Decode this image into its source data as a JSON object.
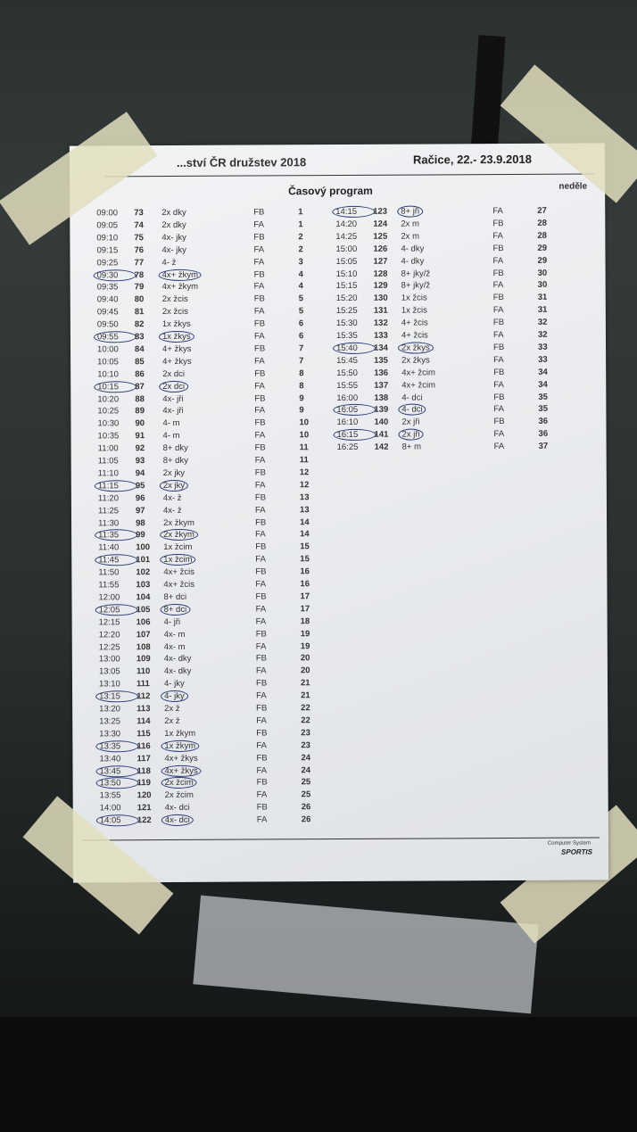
{
  "header": {
    "competition": "...ství ČR družstev 2018",
    "venue_date": "Račice, 22.- 23.9.2018"
  },
  "title": "Časový program",
  "day": "neděle",
  "footer": {
    "line1": "Computer System",
    "brand": "SPORTIS"
  },
  "colors": {
    "paper": "#eceef1",
    "ink": "#333333",
    "pen_circle": "#2b3a7a",
    "tape": "#e2debe"
  },
  "columns": [
    [
      {
        "time": "09:00",
        "no": "73",
        "event": "2x dky",
        "course": "FB",
        "lane": "1"
      },
      {
        "time": "09:05",
        "no": "74",
        "event": "2x dky",
        "course": "FA",
        "lane": "1"
      },
      {
        "time": "09:10",
        "no": "75",
        "event": "4x- jky",
        "course": "FB",
        "lane": "2"
      },
      {
        "time": "09:15",
        "no": "76",
        "event": "4x- jky",
        "course": "FA",
        "lane": "2"
      },
      {
        "time": "09:25",
        "no": "77",
        "event": "4- ž",
        "course": "FA",
        "lane": "3"
      },
      {
        "time": "09:30",
        "no": "78",
        "event": "4x+ žkym",
        "course": "FB",
        "lane": "4",
        "circled": true
      },
      {
        "time": "09:35",
        "no": "79",
        "event": "4x+ žkym",
        "course": "FA",
        "lane": "4"
      },
      {
        "time": "09:40",
        "no": "80",
        "event": "2x žcis",
        "course": "FB",
        "lane": "5"
      },
      {
        "time": "09:45",
        "no": "81",
        "event": "2x žcis",
        "course": "FA",
        "lane": "5"
      },
      {
        "time": "09:50",
        "no": "82",
        "event": "1x žkys",
        "course": "FB",
        "lane": "6"
      },
      {
        "time": "09:55",
        "no": "83",
        "event": "1x žkys",
        "course": "FA",
        "lane": "6",
        "circled": true
      },
      {
        "time": "10:00",
        "no": "84",
        "event": "4+ žkys",
        "course": "FB",
        "lane": "7"
      },
      {
        "time": "10:05",
        "no": "85",
        "event": "4+ žkys",
        "course": "FA",
        "lane": "7"
      },
      {
        "time": "10:10",
        "no": "86",
        "event": "2x dci",
        "course": "FB",
        "lane": "8"
      },
      {
        "time": "10:15",
        "no": "87",
        "event": "2x dci",
        "course": "FA",
        "lane": "8",
        "circled": true
      },
      {
        "time": "10:20",
        "no": "88",
        "event": "4x- jři",
        "course": "FB",
        "lane": "9"
      },
      {
        "time": "10:25",
        "no": "89",
        "event": "4x- jři",
        "course": "FA",
        "lane": "9"
      },
      {
        "time": "10:30",
        "no": "90",
        "event": "4- m",
        "course": "FB",
        "lane": "10"
      },
      {
        "time": "10:35",
        "no": "91",
        "event": "4- m",
        "course": "FA",
        "lane": "10"
      },
      {
        "time": "11:00",
        "no": "92",
        "event": "8+ dky",
        "course": "FB",
        "lane": "11"
      },
      {
        "time": "11:05",
        "no": "93",
        "event": "8+ dky",
        "course": "FA",
        "lane": "11"
      },
      {
        "time": "11:10",
        "no": "94",
        "event": "2x jky",
        "course": "FB",
        "lane": "12"
      },
      {
        "time": "11:15",
        "no": "95",
        "event": "2x jky",
        "course": "FA",
        "lane": "12",
        "circled": true
      },
      {
        "time": "11:20",
        "no": "96",
        "event": "4x- ž",
        "course": "FB",
        "lane": "13"
      },
      {
        "time": "11:25",
        "no": "97",
        "event": "4x- ž",
        "course": "FA",
        "lane": "13"
      },
      {
        "time": "11:30",
        "no": "98",
        "event": "2x žkym",
        "course": "FB",
        "lane": "14"
      },
      {
        "time": "11:35",
        "no": "99",
        "event": "2x žkym",
        "course": "FA",
        "lane": "14",
        "circled": true
      },
      {
        "time": "11:40",
        "no": "100",
        "event": "1x žcim",
        "course": "FB",
        "lane": "15"
      },
      {
        "time": "11:45",
        "no": "101",
        "event": "1x žcim",
        "course": "FA",
        "lane": "15",
        "circled": true
      },
      {
        "time": "11:50",
        "no": "102",
        "event": "4x+ žcis",
        "course": "FB",
        "lane": "16"
      },
      {
        "time": "11:55",
        "no": "103",
        "event": "4x+ žcis",
        "course": "FA",
        "lane": "16"
      },
      {
        "time": "12:00",
        "no": "104",
        "event": "8+ dci",
        "course": "FB",
        "lane": "17"
      },
      {
        "time": "12:05",
        "no": "105",
        "event": "8+ dci",
        "course": "FA",
        "lane": "17",
        "circled": true
      },
      {
        "time": "12:15",
        "no": "106",
        "event": "4- jři",
        "course": "FA",
        "lane": "18"
      },
      {
        "time": "12:20",
        "no": "107",
        "event": "4x- m",
        "course": "FB",
        "lane": "19"
      },
      {
        "time": "12:25",
        "no": "108",
        "event": "4x- m",
        "course": "FA",
        "lane": "19"
      },
      {
        "time": "13:00",
        "no": "109",
        "event": "4x- dky",
        "course": "FB",
        "lane": "20"
      },
      {
        "time": "13:05",
        "no": "110",
        "event": "4x- dky",
        "course": "FA",
        "lane": "20"
      },
      {
        "time": "13:10",
        "no": "111",
        "event": "4- jky",
        "course": "FB",
        "lane": "21"
      },
      {
        "time": "13:15",
        "no": "112",
        "event": "4- jky",
        "course": "FA",
        "lane": "21",
        "circled": true
      },
      {
        "time": "13:20",
        "no": "113",
        "event": "2x ž",
        "course": "FB",
        "lane": "22"
      },
      {
        "time": "13:25",
        "no": "114",
        "event": "2x ž",
        "course": "FA",
        "lane": "22"
      },
      {
        "time": "13:30",
        "no": "115",
        "event": "1x žkym",
        "course": "FB",
        "lane": "23"
      },
      {
        "time": "13:35",
        "no": "116",
        "event": "1x žkym",
        "course": "FA",
        "lane": "23",
        "circled": true
      },
      {
        "time": "13:40",
        "no": "117",
        "event": "4x+ žkys",
        "course": "FB",
        "lane": "24"
      },
      {
        "time": "13:45",
        "no": "118",
        "event": "4x+ žkys",
        "course": "FA",
        "lane": "24",
        "circled": true
      },
      {
        "time": "13:50",
        "no": "119",
        "event": "2x žcim",
        "course": "FB",
        "lane": "25",
        "circled": true
      },
      {
        "time": "13:55",
        "no": "120",
        "event": "2x žcim",
        "course": "FA",
        "lane": "25"
      },
      {
        "time": "14:00",
        "no": "121",
        "event": "4x- dci",
        "course": "FB",
        "lane": "26"
      },
      {
        "time": "14:05",
        "no": "122",
        "event": "4x- dci",
        "course": "FA",
        "lane": "26",
        "circled": true
      }
    ],
    [
      {
        "time": "14:15",
        "no": "123",
        "event": "8+ jři",
        "course": "FA",
        "lane": "27",
        "circled": true
      },
      {
        "time": "14:20",
        "no": "124",
        "event": "2x m",
        "course": "FB",
        "lane": "28"
      },
      {
        "time": "14:25",
        "no": "125",
        "event": "2x m",
        "course": "FA",
        "lane": "28"
      },
      {
        "time": "15:00",
        "no": "126",
        "event": "4- dky",
        "course": "FB",
        "lane": "29"
      },
      {
        "time": "15:05",
        "no": "127",
        "event": "4- dky",
        "course": "FA",
        "lane": "29"
      },
      {
        "time": "15:10",
        "no": "128",
        "event": "8+ jky/ž",
        "course": "FB",
        "lane": "30"
      },
      {
        "time": "15:15",
        "no": "129",
        "event": "8+ jky/ž",
        "course": "FA",
        "lane": "30"
      },
      {
        "time": "15:20",
        "no": "130",
        "event": "1x žcis",
        "course": "FB",
        "lane": "31"
      },
      {
        "time": "15:25",
        "no": "131",
        "event": "1x žcis",
        "course": "FA",
        "lane": "31"
      },
      {
        "time": "15:30",
        "no": "132",
        "event": "4+ žcis",
        "course": "FB",
        "lane": "32"
      },
      {
        "time": "15:35",
        "no": "133",
        "event": "4+ žcis",
        "course": "FA",
        "lane": "32"
      },
      {
        "time": "15:40",
        "no": "134",
        "event": "2x žkys",
        "course": "FB",
        "lane": "33",
        "circled": true
      },
      {
        "time": "15:45",
        "no": "135",
        "event": "2x žkys",
        "course": "FA",
        "lane": "33"
      },
      {
        "time": "15:50",
        "no": "136",
        "event": "4x+ žcim",
        "course": "FB",
        "lane": "34"
      },
      {
        "time": "15:55",
        "no": "137",
        "event": "4x+ žcim",
        "course": "FA",
        "lane": "34"
      },
      {
        "time": "16:00",
        "no": "138",
        "event": "4- dci",
        "course": "FB",
        "lane": "35"
      },
      {
        "time": "16:05",
        "no": "139",
        "event": "4- dci",
        "course": "FA",
        "lane": "35",
        "circled": true
      },
      {
        "time": "16:10",
        "no": "140",
        "event": "2x jři",
        "course": "FB",
        "lane": "36"
      },
      {
        "time": "16:15",
        "no": "141",
        "event": "2x jři",
        "course": "FA",
        "lane": "36",
        "circled": true
      },
      {
        "time": "16:25",
        "no": "142",
        "event": "8+ m",
        "course": "FA",
        "lane": "37"
      }
    ]
  ]
}
